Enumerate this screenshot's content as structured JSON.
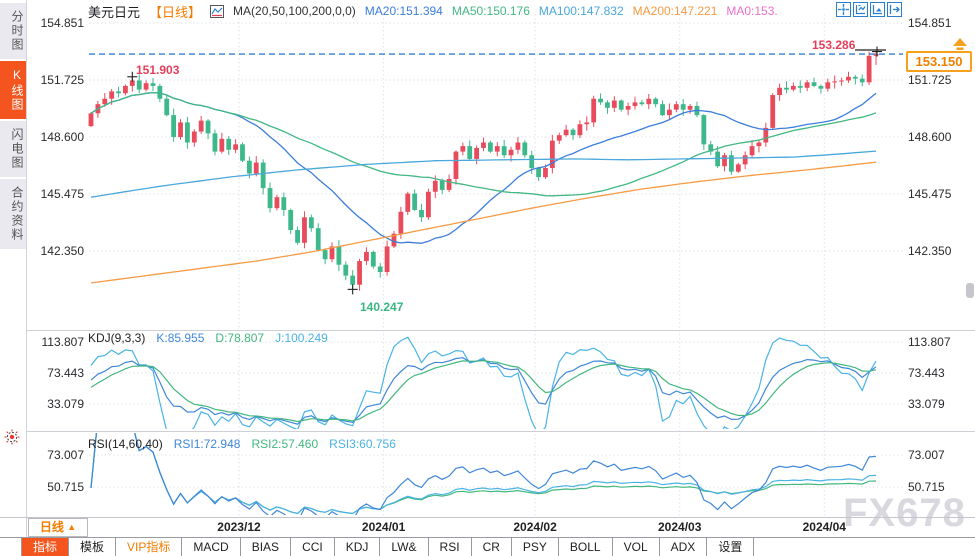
{
  "header": {
    "symbol": "美元日元",
    "period": "【日线】",
    "ma_label": "MA(20,50,100,200,0,0)",
    "ma20": "MA20:151.394",
    "ma50": "MA50:150.176",
    "ma100": "MA100:147.832",
    "ma200": "MA200:147.221",
    "ma0": "MA0:153."
  },
  "toolbar_icons": [
    "crosshair-icon",
    "y-axis-scale-icon",
    "x-axis-scale-icon",
    "go-to-latest-icon"
  ],
  "sidebar": {
    "items": [
      {
        "label": "分时图",
        "active": false
      },
      {
        "label": "K线图",
        "active": true
      },
      {
        "label": "闪电图",
        "active": false
      },
      {
        "label": "合约资料",
        "active": false
      }
    ]
  },
  "kdj_header": {
    "title": "KDJ(9,3,3)",
    "k": "K:85.955",
    "d": "D:78.807",
    "j": "J:100.249"
  },
  "rsi_header": {
    "title": "RSI(14,60,40)",
    "rsi1": "RSI1:72.948",
    "rsi2": "RSI2:57.460",
    "rsi3": "RSI3:60.756"
  },
  "annotations": {
    "swing_high_nov": "151.903",
    "swing_high_apr": "153.286",
    "swing_low_dec": "140.247",
    "last_price": "153.150"
  },
  "x_axis": {
    "period_selector": "日线",
    "arrow": "▲",
    "dates": [
      "2023/12",
      "2024/01",
      "2024/02",
      "2024/03",
      "2024/04"
    ]
  },
  "bottom_tabs": [
    {
      "label": "指标",
      "style": "active"
    },
    {
      "label": "模板",
      "style": ""
    },
    {
      "label": "VIP指标",
      "style": "vip"
    },
    {
      "label": "MACD",
      "style": ""
    },
    {
      "label": "BIAS",
      "style": ""
    },
    {
      "label": "CCI",
      "style": ""
    },
    {
      "label": "KDJ",
      "style": ""
    },
    {
      "label": "LW&",
      "style": ""
    },
    {
      "label": "RSI",
      "style": ""
    },
    {
      "label": "CR",
      "style": ""
    },
    {
      "label": "PSY",
      "style": ""
    },
    {
      "label": "BOLL",
      "style": ""
    },
    {
      "label": "VOL",
      "style": ""
    },
    {
      "label": "ADX",
      "style": ""
    },
    {
      "label": "设置",
      "style": ""
    }
  ],
  "watermark": "FX678",
  "colors": {
    "up_candle": "#e84b5c",
    "down_candle": "#3cb88a",
    "ma20": "#3c7edb",
    "ma50": "#42b883",
    "ma100": "#4aa8dc",
    "ma200": "#f59b45",
    "ma0": "#ea6fc9",
    "accent_orange": "#f4551e",
    "label_orange": "#f57c00",
    "dashed_price_line": "#2e7fd6",
    "tag_border": "#f5a11d",
    "ann_red": "#e53e5b",
    "ann_green": "#38b583",
    "kdj_k": "#3f87d8",
    "kdj_d": "#43b77f",
    "kdj_j": "#4ab3e6",
    "grid": "#e2e2ea",
    "watermark": "#d9d8de"
  },
  "chart_data": {
    "type": "candlestick",
    "symbol": "USD/JPY daily (美元日元 日线)",
    "main_gridlines": [
      154.851,
      151.725,
      148.6,
      145.475,
      142.35
    ],
    "last_price": 153.15,
    "swing_high_nov": 151.903,
    "swing_high_apr": 153.286,
    "swing_low_dec": 140.247,
    "open_first": 149.2,
    "closes": [
      149.9,
      150.4,
      150.7,
      151.1,
      151.0,
      151.4,
      151.7,
      151.2,
      151.55,
      151.4,
      150.7,
      149.8,
      148.6,
      149.4,
      148.3,
      148.9,
      149.5,
      148.8,
      147.8,
      148.5,
      147.9,
      148.2,
      147.3,
      146.6,
      147.2,
      145.8,
      144.7,
      145.3,
      144.6,
      143.5,
      142.8,
      144.2,
      143.6,
      142.4,
      141.9,
      142.6,
      141.6,
      141.0,
      140.5,
      141.8,
      142.3,
      141.5,
      141.2,
      142.6,
      143.3,
      144.5,
      145.5,
      144.6,
      144.2,
      145.6,
      146.2,
      145.7,
      146.3,
      147.8,
      148.1,
      147.4,
      148.0,
      148.3,
      147.8,
      148.1,
      147.6,
      147.9,
      148.3,
      147.6,
      146.9,
      146.4,
      146.9,
      148.4,
      148.7,
      149.0,
      148.7,
      149.3,
      149.4,
      150.7,
      150.5,
      150.2,
      150.6,
      150.1,
      150.3,
      150.5,
      150.4,
      150.7,
      150.4,
      149.8,
      150.1,
      150.4,
      150.1,
      150.3,
      149.8,
      148.2,
      147.8,
      147.0,
      147.6,
      146.7,
      147.1,
      147.6,
      148.1,
      148.3,
      149.1,
      150.9,
      151.3,
      151.2,
      151.4,
      151.3,
      151.6,
      151.4,
      151.25,
      151.6,
      151.65,
      151.7,
      151.9,
      151.8,
      151.6,
      153.05,
      153.15
    ],
    "wick_overrides": {
      "6": {
        "high": 151.903
      },
      "38": {
        "low": 140.247
      },
      "113": {
        "high": 153.28,
        "low": 151.45
      },
      "114": {
        "high": 153.286,
        "low": 152.55
      }
    },
    "x_months": [
      {
        "label": "2023/12",
        "index": 22
      },
      {
        "label": "2024/01",
        "index": 43
      },
      {
        "label": "2024/02",
        "index": 65
      },
      {
        "label": "2024/03",
        "index": 86
      },
      {
        "label": "2024/04",
        "index": 107
      }
    ],
    "ma_computed": [
      {
        "name": "MA20",
        "period": 20,
        "final": 151.394
      },
      {
        "name": "MA50",
        "period": 50,
        "final": 150.176
      }
    ],
    "ma_points": [
      {
        "name": "MA100",
        "final": 147.832,
        "points": [
          [
            0,
            145.3
          ],
          [
            10,
            145.9
          ],
          [
            20,
            146.4
          ],
          [
            30,
            146.8
          ],
          [
            40,
            147.1
          ],
          [
            50,
            147.3
          ],
          [
            60,
            147.35
          ],
          [
            70,
            147.4
          ],
          [
            78,
            147.35
          ],
          [
            86,
            147.4
          ],
          [
            94,
            147.45
          ],
          [
            102,
            147.5
          ],
          [
            108,
            147.65
          ],
          [
            114,
            147.83
          ]
        ]
      },
      {
        "name": "MA200",
        "final": 147.221,
        "points": [
          [
            0,
            140.6
          ],
          [
            8,
            141.0
          ],
          [
            16,
            141.4
          ],
          [
            24,
            141.8
          ],
          [
            32,
            142.3
          ],
          [
            40,
            142.9
          ],
          [
            48,
            143.5
          ],
          [
            56,
            144.1
          ],
          [
            64,
            144.7
          ],
          [
            72,
            145.25
          ],
          [
            80,
            145.75
          ],
          [
            88,
            146.15
          ],
          [
            96,
            146.5
          ],
          [
            104,
            146.8
          ],
          [
            110,
            147.05
          ],
          [
            114,
            147.22
          ]
        ]
      }
    ],
    "kdj_panel": {
      "params": [
        9,
        3,
        3
      ],
      "final": {
        "k": 85.955,
        "d": 78.807,
        "j": 100.249
      },
      "gridlines": [
        113.807,
        73.443,
        33.079
      ]
    },
    "rsi_panel": {
      "params": [
        14,
        60,
        40
      ],
      "final": {
        "rsi1": 72.948,
        "rsi2": 57.46,
        "rsi3": 60.756
      },
      "gridlines": [
        73.007,
        50.715
      ]
    }
  }
}
